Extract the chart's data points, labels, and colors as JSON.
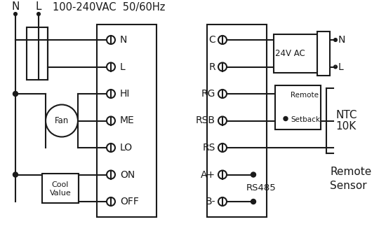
{
  "bg_color": "#ffffff",
  "line_color": "#1a1a1a",
  "line_width": 1.5,
  "title": "100-240VAC  50/60Hz",
  "left_terms": [
    "N",
    "L",
    "HI",
    "ME",
    "LO",
    "ON",
    "OFF"
  ],
  "right_terms": [
    "C",
    "R",
    "RG",
    "RSB",
    "RS",
    "A+",
    "B-"
  ],
  "ntc_label": "NTC\n10K",
  "remote_label": "Remote\nSensor",
  "remote_setback_label": "Remote\nSetback",
  "rs485_label": "RS485",
  "24vac_label": "24V AC"
}
